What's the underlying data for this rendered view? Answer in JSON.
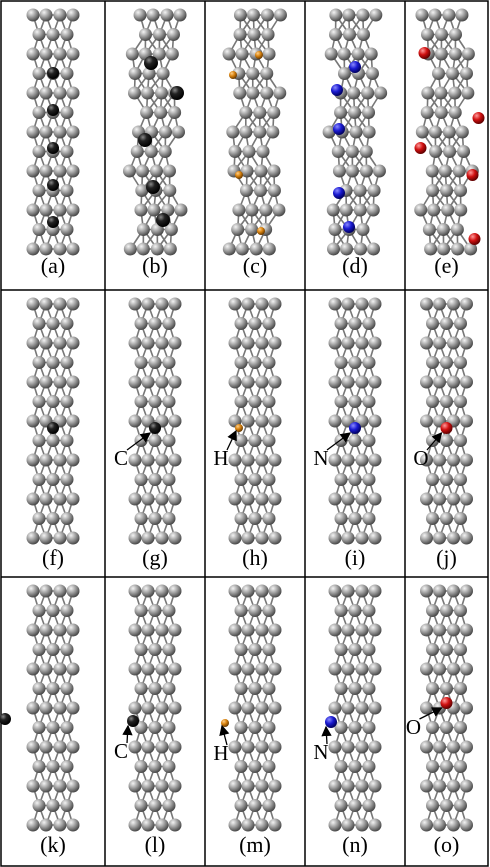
{
  "panels": [
    {
      "label": "(a)"
    },
    {
      "label": "(b)"
    },
    {
      "label": "(c)"
    },
    {
      "label": "(d)"
    },
    {
      "label": "(e)"
    },
    {
      "label": "(f)"
    },
    {
      "label": "(g)",
      "element": "C"
    },
    {
      "label": "(h)",
      "element": "H"
    },
    {
      "label": "(i)",
      "element": "N"
    },
    {
      "label": "(j)",
      "element": "O"
    },
    {
      "label": "(k)"
    },
    {
      "label": "(l)",
      "element": "C"
    },
    {
      "label": "(m)",
      "element": "H"
    },
    {
      "label": "(n)",
      "element": "N"
    },
    {
      "label": "(o)",
      "element": "O"
    }
  ]
}
